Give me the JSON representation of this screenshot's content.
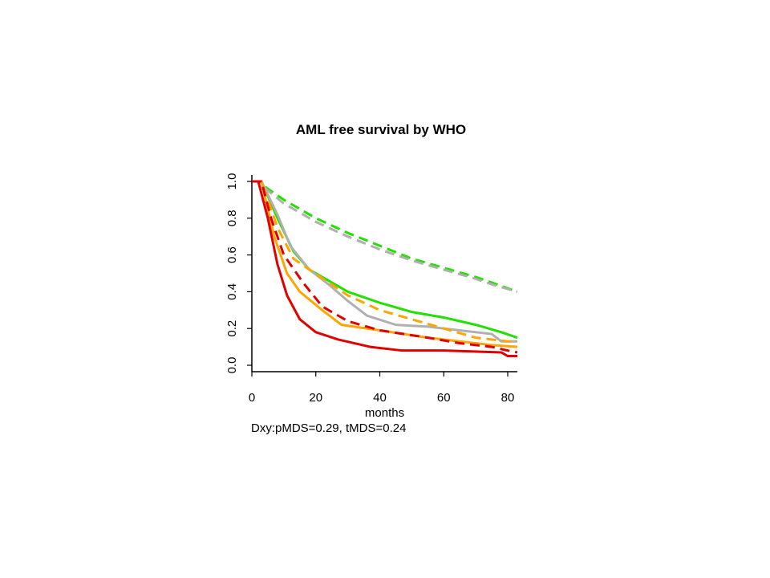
{
  "chart_data": {
    "type": "line",
    "title": "AML free survival by WHO",
    "xlabel": "months",
    "ylabel": "",
    "note": "Dxy:pMDS=0.29, tMDS=0.24",
    "xlim": [
      0,
      83
    ],
    "ylim": [
      0,
      1
    ],
    "xticks": [
      "0",
      "20",
      "40",
      "60",
      "80"
    ],
    "xtick_values": [
      0,
      20,
      40,
      60,
      80
    ],
    "yticks": [
      "0.0",
      "0.2",
      "0.4",
      "0.6",
      "0.8",
      "1.0"
    ],
    "ytick_values": [
      0,
      0.2,
      0.4,
      0.6,
      0.8,
      1.0
    ],
    "grid": false,
    "legend": "none",
    "series": [
      {
        "color": "#22e000",
        "style": "dashed",
        "x": [
          0,
          2,
          5,
          10,
          20,
          30,
          40,
          50,
          60,
          70,
          75,
          83
        ],
        "y": [
          1,
          1,
          0.96,
          0.9,
          0.8,
          0.72,
          0.65,
          0.58,
          0.53,
          0.48,
          0.45,
          0.4
        ]
      },
      {
        "color": "#b0b0b0",
        "style": "dashed",
        "x": [
          0,
          2,
          5,
          10,
          20,
          30,
          40,
          50,
          60,
          70,
          75,
          83
        ],
        "y": [
          1,
          1,
          0.95,
          0.88,
          0.78,
          0.7,
          0.63,
          0.57,
          0.52,
          0.47,
          0.44,
          0.4
        ]
      },
      {
        "color": "#22e000",
        "style": "solid",
        "x": [
          0,
          3,
          8,
          13,
          18,
          22,
          30,
          40,
          50,
          60,
          70,
          78,
          83
        ],
        "y": [
          1,
          1,
          0.8,
          0.62,
          0.52,
          0.48,
          0.4,
          0.34,
          0.29,
          0.26,
          0.22,
          0.18,
          0.15
        ]
      },
      {
        "color": "#b0b0b0",
        "style": "solid",
        "x": [
          0,
          3,
          8,
          12,
          18,
          24,
          30,
          36,
          45,
          55,
          65,
          75,
          78,
          83
        ],
        "y": [
          1,
          1,
          0.82,
          0.65,
          0.52,
          0.44,
          0.35,
          0.27,
          0.22,
          0.21,
          0.19,
          0.17,
          0.13,
          0.13
        ]
      },
      {
        "color": "#ffa500",
        "style": "dashed",
        "x": [
          0,
          3,
          8,
          13,
          18,
          24,
          30,
          40,
          50,
          60,
          70,
          80,
          83
        ],
        "y": [
          1,
          1,
          0.75,
          0.58,
          0.52,
          0.45,
          0.38,
          0.3,
          0.25,
          0.2,
          0.15,
          0.13,
          0.13
        ]
      },
      {
        "color": "#ffa500",
        "style": "solid",
        "x": [
          0,
          3,
          7,
          11,
          15,
          22,
          28,
          40,
          55,
          65,
          75,
          83
        ],
        "y": [
          1,
          1,
          0.7,
          0.5,
          0.4,
          0.3,
          0.22,
          0.19,
          0.15,
          0.13,
          0.11,
          0.1
        ]
      },
      {
        "color": "#e00000",
        "style": "dashed",
        "x": [
          0,
          3,
          6,
          10,
          16,
          22,
          30,
          40,
          55,
          65,
          75,
          80,
          83
        ],
        "y": [
          1,
          1,
          0.8,
          0.6,
          0.45,
          0.32,
          0.24,
          0.19,
          0.15,
          0.12,
          0.1,
          0.08,
          0.07
        ]
      },
      {
        "color": "#e00000",
        "style": "solid",
        "x": [
          0,
          2,
          5,
          8,
          11,
          15,
          20,
          27,
          37,
          47,
          60,
          78,
          80,
          83
        ],
        "y": [
          1,
          1,
          0.8,
          0.55,
          0.38,
          0.25,
          0.18,
          0.14,
          0.1,
          0.08,
          0.08,
          0.07,
          0.05,
          0.05
        ]
      }
    ]
  }
}
